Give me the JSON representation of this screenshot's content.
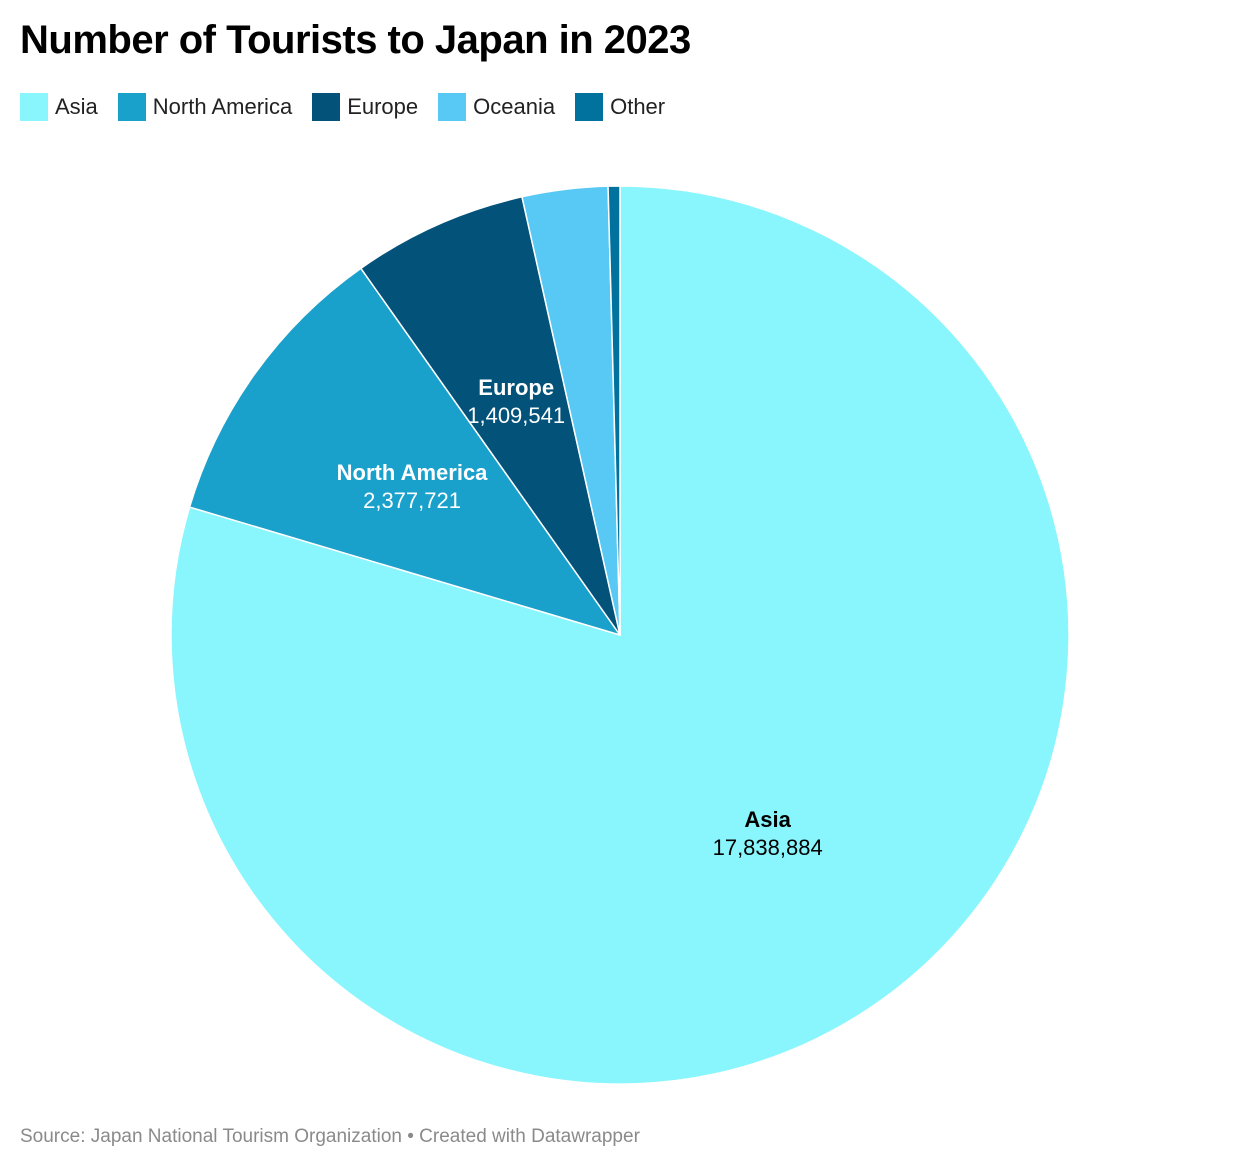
{
  "chart_data": {
    "type": "pie",
    "title": "Number of Tourists to Japan in 2023",
    "slices": [
      {
        "name": "Asia",
        "value": 17838884,
        "value_label": "17,838,884",
        "color": "#89f5fd",
        "label_color": "#000000",
        "show_label": true
      },
      {
        "name": "North America",
        "value": 2377721,
        "value_label": "2,377,721",
        "color": "#19a0cb",
        "label_color": "#ffffff",
        "show_label": true
      },
      {
        "name": "Europe",
        "value": 1409541,
        "value_label": "1,409,541",
        "color": "#02527a",
        "label_color": "#ffffff",
        "show_label": true
      },
      {
        "name": "Oceania",
        "value": 690000,
        "value_label": "",
        "color": "#58c9f4",
        "label_color": "#ffffff",
        "show_label": false
      },
      {
        "name": "Other",
        "value": 95000,
        "value_label": "",
        "color": "#00729d",
        "label_color": "#ffffff",
        "show_label": false
      }
    ],
    "legend_position": "top-left",
    "source": "Source: Japan National Tourism Organization • Created with Datawrapper"
  }
}
